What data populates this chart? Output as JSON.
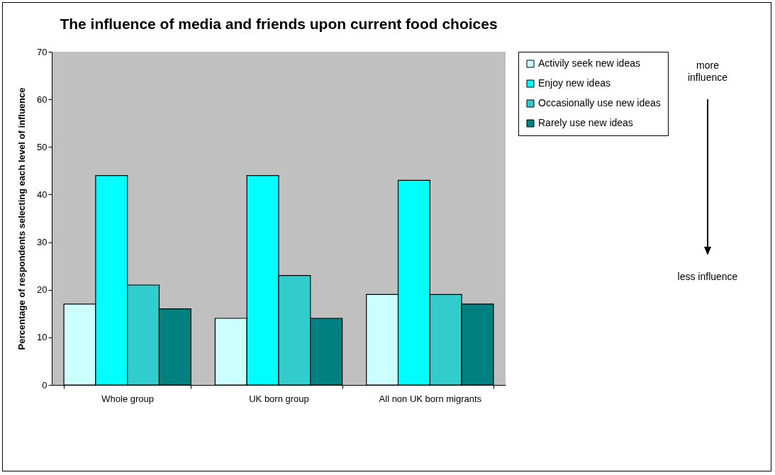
{
  "chart_data": {
    "type": "bar",
    "title": "The influence of media and friends upon current food choices",
    "ylabel": "Percentage of respondents selecting each level of influence",
    "categories": [
      "Whole group",
      "UK born group",
      "All non UK born migrants"
    ],
    "series": [
      {
        "name": "Activily seek new ideas",
        "color": "#ccffff",
        "values": [
          17,
          14,
          19
        ]
      },
      {
        "name": "Enjoy new ideas",
        "color": "#00ffff",
        "values": [
          44,
          44,
          43
        ]
      },
      {
        "name": "Occasionally use new ideas",
        "color": "#33cccc",
        "values": [
          21,
          23,
          19
        ]
      },
      {
        "name": "Rarely use new ideas",
        "color": "#008080",
        "values": [
          16,
          14,
          17
        ]
      }
    ],
    "ylim": [
      0,
      70
    ],
    "yticks": [
      0,
      10,
      20,
      30,
      40,
      50,
      60,
      70
    ],
    "grid": false,
    "legend": "right",
    "annotations": [
      "more influence",
      "less influence"
    ]
  }
}
